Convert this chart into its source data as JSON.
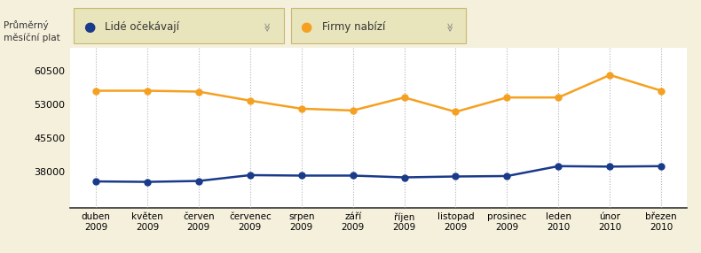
{
  "title_ylabel": "Průměrný\nměsíční plat",
  "x_labels": [
    "duben\n2009",
    "květen\n2009",
    "červen\n2009",
    "červenec\n2009",
    "srpen\n2009",
    "září\n2009",
    "říjen\n2009",
    "listopad\n2009",
    "prosinec\n2009",
    "leden\n2010",
    "únor\n2010",
    "březen\n2010"
  ],
  "lide_ocekavaji": [
    35800,
    35700,
    35900,
    37200,
    37100,
    37100,
    36700,
    36900,
    37000,
    39200,
    39100,
    39200
  ],
  "firmy_nabizi": [
    56000,
    56000,
    55800,
    53800,
    52000,
    51600,
    54500,
    51300,
    54500,
    54500,
    59500,
    56000
  ],
  "lide_color": "#1a3a8a",
  "firmy_color": "#f5a020",
  "background_color": "#f5f0dc",
  "plot_background": "#ffffff",
  "grid_color": "#aaaaaa",
  "yticks": [
    38000,
    45500,
    53000,
    60500
  ],
  "ylim": [
    30000,
    65500
  ],
  "legend_lide": "Lidé očekávají",
  "legend_firmy": "Firmy nabízí",
  "legend_bg": "#e8e4bc",
  "legend_border": "#c8b870",
  "marker_size": 5,
  "line_width": 1.8
}
